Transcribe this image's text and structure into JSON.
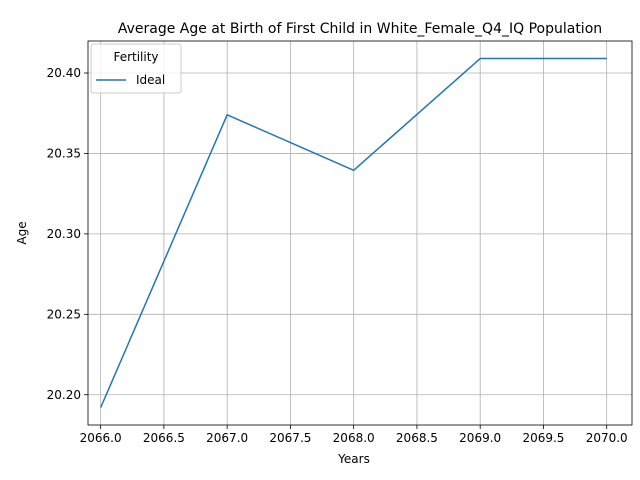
{
  "chart_data": {
    "type": "line",
    "title": "Average Age at Birth of First Child in White_Female_Q4_IQ Population",
    "xlabel": "Years",
    "ylabel": "Age",
    "x": [
      2066,
      2067,
      2068,
      2069,
      2070
    ],
    "series": [
      {
        "name": "Ideal",
        "color": "#1f77b4",
        "values": [
          20.192,
          20.374,
          20.3395,
          20.409,
          20.409
        ]
      }
    ],
    "xlim": [
      2065.9,
      2070.2
    ],
    "ylim": [
      20.1812,
      20.4199
    ],
    "xticks": [
      "2066.0",
      "2066.5",
      "2067.0",
      "2067.5",
      "2068.0",
      "2068.5",
      "2069.0",
      "2069.5",
      "2070.0"
    ],
    "xtick_values": [
      2066.0,
      2066.5,
      2067.0,
      2067.5,
      2068.0,
      2068.5,
      2069.0,
      2069.5,
      2070.0
    ],
    "yticks": [
      "20.20",
      "20.25",
      "20.30",
      "20.35",
      "20.40"
    ],
    "ytick_values": [
      20.2,
      20.25,
      20.3,
      20.35,
      20.4
    ],
    "grid": true,
    "legend": {
      "title": "Fertility",
      "placement": "top-left"
    }
  }
}
